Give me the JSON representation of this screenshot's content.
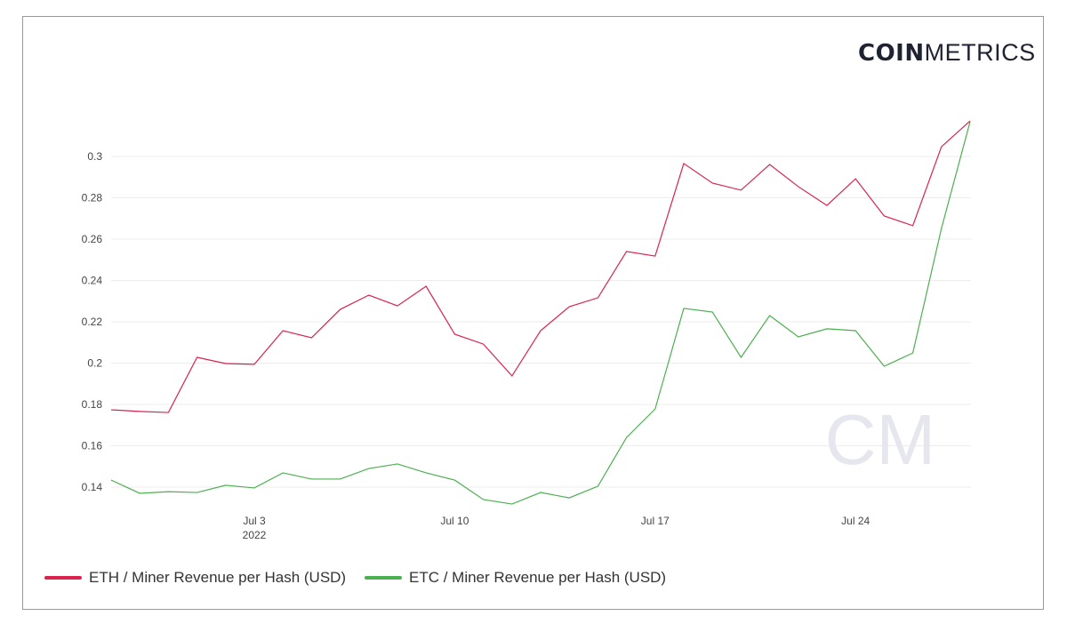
{
  "logo": {
    "bold": "COIN",
    "light": "METRICS",
    "watermark": "CM"
  },
  "chart_data": {
    "type": "line",
    "title": "",
    "xlabel": "",
    "ylabel": "",
    "x": [
      "2022-06-28",
      "2022-06-29",
      "2022-06-30",
      "2022-07-01",
      "2022-07-02",
      "2022-07-03",
      "2022-07-04",
      "2022-07-05",
      "2022-07-06",
      "2022-07-07",
      "2022-07-08",
      "2022-07-09",
      "2022-07-10",
      "2022-07-11",
      "2022-07-12",
      "2022-07-13",
      "2022-07-14",
      "2022-07-15",
      "2022-07-16",
      "2022-07-17",
      "2022-07-18",
      "2022-07-19",
      "2022-07-20",
      "2022-07-21",
      "2022-07-22",
      "2022-07-23",
      "2022-07-24",
      "2022-07-25",
      "2022-07-26",
      "2022-07-27",
      "2022-07-28"
    ],
    "x_ticks": [
      {
        "label": "Jul 3",
        "sub": "2022",
        "index": 5
      },
      {
        "label": "Jul 10",
        "index": 12
      },
      {
        "label": "Jul 17",
        "index": 19
      },
      {
        "label": "Jul 24",
        "index": 26
      }
    ],
    "y_ticks": [
      "0.14",
      "0.16",
      "0.18",
      "0.2",
      "0.22",
      "0.24",
      "0.26",
      "0.28",
      "0.3"
    ],
    "ylim": [
      0.13,
      0.32
    ],
    "grid": true,
    "legend_position": "bottom-left",
    "series": [
      {
        "name": "ETH / Miner Revenue per Hash (USD)",
        "color": "#d9244f",
        "values": [
          0.1774,
          0.1766,
          0.1761,
          0.2028,
          0.1998,
          0.1994,
          0.2157,
          0.2123,
          0.226,
          0.2329,
          0.2277,
          0.2372,
          0.214,
          0.2092,
          0.1938,
          0.2157,
          0.2273,
          0.2316,
          0.254,
          0.2518,
          0.2966,
          0.2871,
          0.2837,
          0.2961,
          0.2854,
          0.2763,
          0.2892,
          0.2712,
          0.2665,
          0.3047,
          0.3172
        ]
      },
      {
        "name": "ETC / Miner Revenue per Hash (USD)",
        "color": "#4caf50",
        "values": [
          0.1434,
          0.137,
          0.1378,
          0.1374,
          0.1409,
          0.1396,
          0.1469,
          0.1439,
          0.1439,
          0.149,
          0.1512,
          0.1469,
          0.1434,
          0.134,
          0.1318,
          0.1374,
          0.1348,
          0.1404,
          0.164,
          0.1778,
          0.2265,
          0.2247,
          0.2028,
          0.223,
          0.2127,
          0.2166,
          0.2157,
          0.1985,
          0.2049,
          0.2652,
          0.3168
        ]
      }
    ]
  }
}
